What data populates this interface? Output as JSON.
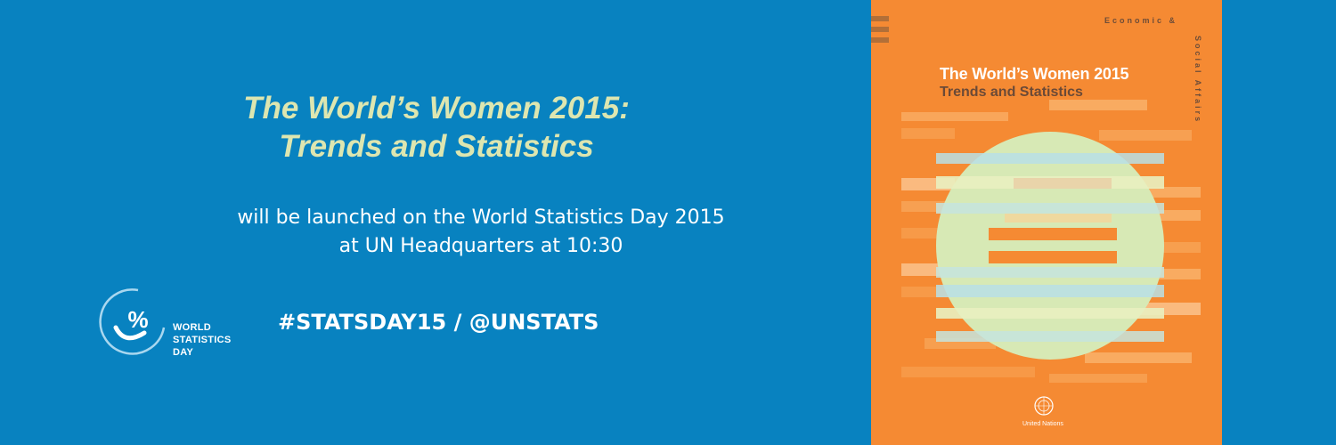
{
  "banner": {
    "title_lines": [
      "The World’s Women 2015:",
      "Trends and Statistics"
    ],
    "subtitle_lines": [
      "will be launched on the World Statistics Day 2015",
      "at UN Headquarters at 10:30"
    ],
    "hashtag": "#STATSDAY15 / @UNSTATS"
  },
  "wsd_logo": {
    "symbol": "%",
    "text_lines": [
      "WORLD",
      "STATISTICS",
      "DAY"
    ],
    "icon": "world-statistics-day-logo-icon"
  },
  "book_cover": {
    "title": "The World’s Women 2015",
    "subtitle": "Trends and Statistics",
    "top_text": "Economic  &",
    "side_text": "Social Affairs",
    "publisher": "United Nations",
    "emblem_icon": "un-emblem-icon"
  },
  "colors": {
    "background": "#0882c0",
    "title": "#dde6b0",
    "text": "#ffffff",
    "cover": "#f58a33",
    "circle": "#d7e9b5"
  }
}
